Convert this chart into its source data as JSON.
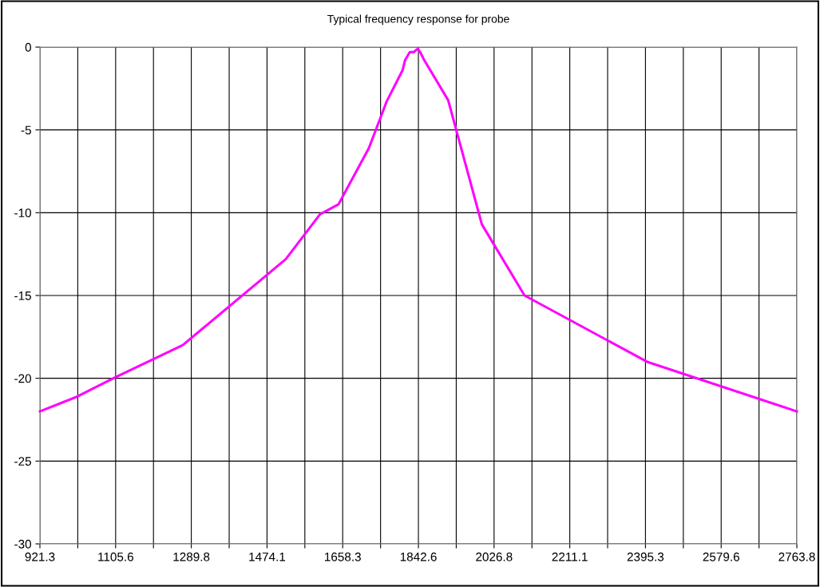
{
  "chart_data": {
    "type": "line",
    "title": "Typical frequency response for probe",
    "x": [
      921.3,
      1012.6,
      1100,
      1269,
      1520,
      1603,
      1648,
      1722,
      1765,
      1804,
      1810,
      1821.6,
      1831,
      1841,
      1847,
      1857,
      1915,
      1997,
      2101,
      2399,
      2763.8
    ],
    "series": [
      {
        "color": "#ff00ff",
        "values": [
          -22,
          -21.1,
          -20,
          -18,
          -12.8,
          -10.1,
          -9.5,
          -6.1,
          -3.3,
          -1.4,
          -0.8,
          -0.3,
          -0.3,
          -0.1,
          -0.3,
          -0.8,
          -3.2,
          -10.7,
          -15.0,
          -19.0,
          -22
        ]
      }
    ],
    "xlim": [
      921.3,
      2763.8
    ],
    "xticks": [
      921.3,
      {
        "value": 1013.4,
        "label": null
      },
      1105.6,
      {
        "value": 1197.7,
        "label": null
      },
      1289.8,
      {
        "value": 1382.0,
        "label": null
      },
      1474.1,
      {
        "value": 1566.2,
        "label": null
      },
      1658.3,
      {
        "value": 1750.5,
        "label": null
      },
      1842.6,
      {
        "value": 1934.7,
        "label": null
      },
      2026.8,
      {
        "value": 2119.0,
        "label": null
      },
      2211.1,
      {
        "value": 2303.2,
        "label": null
      },
      2395.3,
      {
        "value": 2487.5,
        "label": null
      },
      2579.6,
      {
        "value": 2671.7,
        "label": null
      },
      2763.8
    ],
    "ylim": [
      -30,
      0
    ],
    "yticks": [
      -30,
      -25,
      -20,
      -15,
      -10,
      -5,
      0
    ],
    "grid": true,
    "line_style": "solid",
    "marker": "none"
  }
}
